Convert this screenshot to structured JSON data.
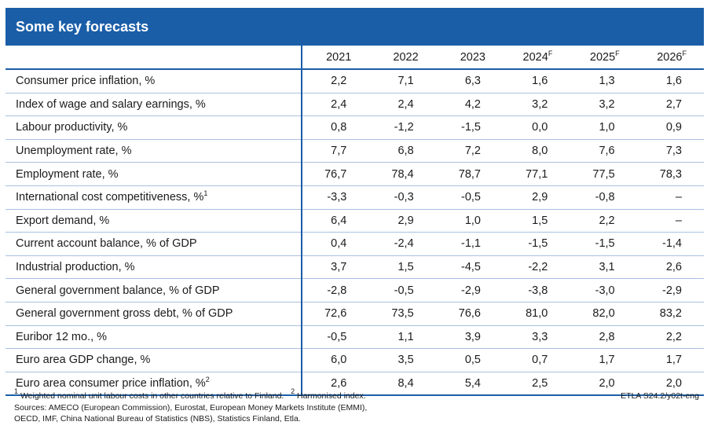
{
  "title": "Some key forecasts",
  "years": [
    {
      "label": "2021",
      "sup": ""
    },
    {
      "label": "2022",
      "sup": ""
    },
    {
      "label": "2023",
      "sup": ""
    },
    {
      "label": "2024",
      "sup": "F"
    },
    {
      "label": "2025",
      "sup": "F"
    },
    {
      "label": "2026",
      "sup": "F"
    }
  ],
  "rows": [
    {
      "label": "Consumer price inflation, %",
      "sup": "",
      "values": [
        "2,2",
        "7,1",
        "6,3",
        "1,6",
        "1,3",
        "1,6"
      ]
    },
    {
      "label": "Index of wage and salary earnings, %",
      "sup": "",
      "values": [
        "2,4",
        "2,4",
        "4,2",
        "3,2",
        "3,2",
        "2,7"
      ]
    },
    {
      "label": "Labour productivity, %",
      "sup": "",
      "values": [
        "0,8",
        "-1,2",
        "-1,5",
        "0,0",
        "1,0",
        "0,9"
      ]
    },
    {
      "label": "Unemployment rate, %",
      "sup": "",
      "values": [
        "7,7",
        "6,8",
        "7,2",
        "8,0",
        "7,6",
        "7,3"
      ]
    },
    {
      "label": "Employment rate, %",
      "sup": "",
      "values": [
        "76,7",
        "78,4",
        "78,7",
        "77,1",
        "77,5",
        "78,3"
      ]
    },
    {
      "label": "International cost competitiveness, %",
      "sup": "1",
      "values": [
        "-3,3",
        "-0,3",
        "-0,5",
        "2,9",
        "-0,8",
        "–"
      ]
    },
    {
      "label": "Export demand, %",
      "sup": "",
      "values": [
        "6,4",
        "2,9",
        "1,0",
        "1,5",
        "2,2",
        "–"
      ]
    },
    {
      "label": "Current account balance, % of GDP",
      "sup": "",
      "values": [
        "0,4",
        "-2,4",
        "-1,1",
        "-1,5",
        "-1,5",
        "-1,4"
      ]
    },
    {
      "label": "Industrial production, %",
      "sup": "",
      "values": [
        "3,7",
        "1,5",
        "-4,5",
        "-2,2",
        "3,1",
        "2,6"
      ]
    },
    {
      "label": "General government balance, % of GDP",
      "sup": "",
      "values": [
        "-2,8",
        "-0,5",
        "-2,9",
        "-3,8",
        "-3,0",
        "-2,9"
      ]
    },
    {
      "label": "General government gross debt, % of GDP",
      "sup": "",
      "values": [
        "72,6",
        "73,5",
        "76,6",
        "81,0",
        "82,0",
        "83,2"
      ]
    },
    {
      "label": "Euribor 12 mo., %",
      "sup": "",
      "values": [
        "-0,5",
        "1,1",
        "3,9",
        "3,3",
        "2,8",
        "2,2"
      ]
    },
    {
      "label": "Euro area GDP change, %",
      "sup": "",
      "values": [
        "6,0",
        "3,5",
        "0,5",
        "0,7",
        "1,7",
        "1,7"
      ]
    },
    {
      "label": "Euro area consumer price inflation, %",
      "sup": "2",
      "values": [
        "2,6",
        "8,4",
        "5,4",
        "2,5",
        "2,0",
        "2,0"
      ]
    }
  ],
  "footnotes": {
    "note1_marker": "1",
    "note1": "Weighted nominal unit labour costs in other countries relative to Finland.",
    "note2_marker": "2",
    "note2": "Harmonised index.",
    "sources_line1": "Sources: AMECO (European Commission), Eurostat, European Money Markets Institute (EMMI),",
    "sources_line2": "OECD, IMF, China National Bureau of Statistics (NBS), Statistics Finland, Etla.",
    "code": "ETLA S24.2/y02t-eng"
  }
}
